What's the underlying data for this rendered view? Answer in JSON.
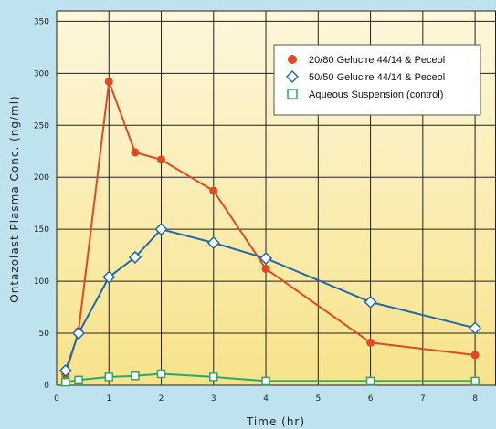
{
  "colors": {
    "background": "#bfe3ee",
    "plot_top": "#fdf7dc",
    "plot_bottom": "#f7e38a",
    "grid": "#222222"
  },
  "chart_data": {
    "type": "line",
    "xlabel": "Time (hr)",
    "ylabel": "Ontazolast Plasma Conc. (ng/ml)",
    "xlim": [
      0,
      8.4
    ],
    "ylim": [
      0,
      360
    ],
    "x_ticks": [
      0,
      1,
      2,
      3,
      4,
      5,
      6,
      7,
      8
    ],
    "y_ticks": [
      0,
      50,
      100,
      150,
      200,
      250,
      300,
      350
    ],
    "grid": true,
    "legend_position": "top-right",
    "series": [
      {
        "name": "20/80 Gelucire 44/14 & Peceol",
        "color": "#e04a22",
        "marker": "filled-circle",
        "x": [
          0.17,
          0.42,
          1,
          1.5,
          2,
          3,
          4,
          6,
          8
        ],
        "y": [
          10,
          52,
          292,
          224,
          217,
          187,
          112,
          41,
          29
        ]
      },
      {
        "name": "50/50 Gelucire 44/14 & Peceol",
        "color": "#1f68b0",
        "marker": "open-diamond",
        "x": [
          0.17,
          0.42,
          1,
          1.5,
          2,
          3,
          4,
          6,
          8
        ],
        "y": [
          14,
          50,
          104,
          123,
          150,
          137,
          122,
          80,
          55
        ]
      },
      {
        "name": "Aqueous Suspension (control)",
        "color": "#2aa86a",
        "marker": "open-square",
        "x": [
          0.17,
          0.42,
          1,
          1.5,
          2,
          3,
          4,
          6,
          8
        ],
        "y": [
          3,
          5,
          8,
          9,
          11,
          8,
          4,
          4,
          4
        ]
      }
    ]
  }
}
